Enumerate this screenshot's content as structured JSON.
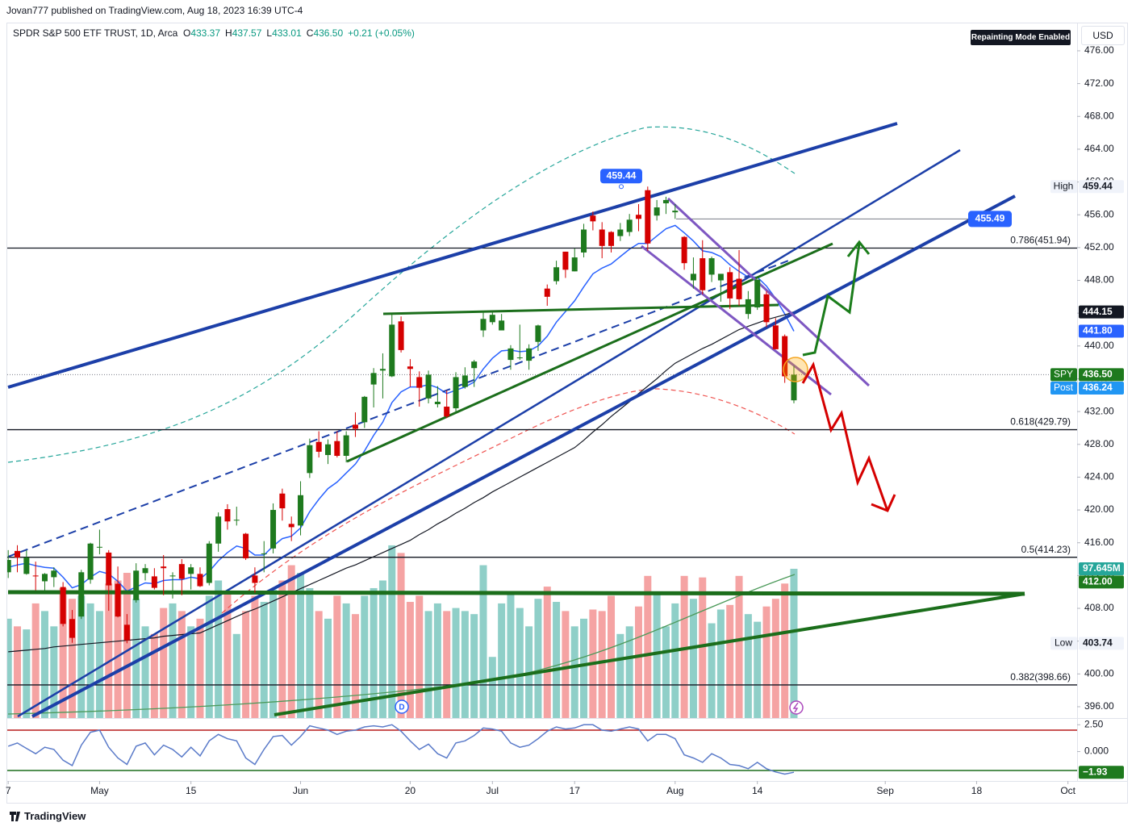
{
  "header": "Jovan777 published on TradingView.com, Aug 18, 2023 16:39 UTC-4",
  "footer": "TradingView",
  "chart_data": {
    "type": "candlestick",
    "title": "SPDR S&P 500 ETF TRUST, 1D, Arca",
    "legend_ohlc": [
      {
        "key": "O",
        "text": "433.37"
      },
      {
        "key": "H",
        "text": "437.57"
      },
      {
        "key": "L",
        "text": "433.01"
      },
      {
        "key": "C",
        "text": "436.50"
      },
      {
        "key": "",
        "text": "+0.21 (+0.05%)"
      }
    ],
    "mode_badge": "Repainting Mode Enabled",
    "currency": "USD",
    "up_color": "#1e7a1e",
    "down_color": "#d50000",
    "candles": [
      [
        412.4,
        415.1,
        411.7,
        413.9
      ],
      [
        415.0,
        415.7,
        412.4,
        414.2
      ],
      [
        412.2,
        415.1,
        412.1,
        414.2
      ],
      [
        412.0,
        413.7,
        410.2,
        411.9
      ],
      [
        411.3,
        412.3,
        410.0,
        412.2
      ],
      [
        411.8,
        413.0,
        410.6,
        412.6
      ],
      [
        410.6,
        411.2,
        405.8,
        406.1
      ],
      [
        406.7,
        407.8,
        403.8,
        404.4
      ],
      [
        407.0,
        412.7,
        406.7,
        412.4
      ],
      [
        411.5,
        416.0,
        411.0,
        415.9
      ],
      [
        415.5,
        417.6,
        414.6,
        415.5
      ],
      [
        414.8,
        415.1,
        407.7,
        410.8
      ],
      [
        411.0,
        413.1,
        406.9,
        407.0
      ],
      [
        406.0,
        407.3,
        403.74,
        404.1
      ],
      [
        409.0,
        413.5,
        408.7,
        412.6
      ],
      [
        412.3,
        413.4,
        411.4,
        412.9
      ],
      [
        411.9,
        412.9,
        410.3,
        410.5
      ],
      [
        413.1,
        414.5,
        409.6,
        412.9
      ],
      [
        411.9,
        412.4,
        409.2,
        412.0
      ],
      [
        413.4,
        414.0,
        409.6,
        411.6
      ],
      [
        412.2,
        413.4,
        410.3,
        413.0
      ],
      [
        412.2,
        413.0,
        410.6,
        410.7
      ],
      [
        411.1,
        416.2,
        410.8,
        415.9
      ],
      [
        415.9,
        419.7,
        414.9,
        419.2
      ],
      [
        420.1,
        420.7,
        417.6,
        418.6
      ],
      [
        418.8,
        420.4,
        418.1,
        418.8
      ],
      [
        417.1,
        417.2,
        413.9,
        414.1
      ],
      [
        412.0,
        413.0,
        409.9,
        411.1
      ],
      [
        414.7,
        416.2,
        412.4,
        414.7
      ],
      [
        415.3,
        420.8,
        414.7,
        420.0
      ],
      [
        422.0,
        422.6,
        418.7,
        420.2
      ],
      [
        418.3,
        419.2,
        416.2,
        417.9
      ],
      [
        418.1,
        423.5,
        416.9,
        421.8
      ],
      [
        424.5,
        428.7,
        423.9,
        427.9
      ],
      [
        428.3,
        429.6,
        426.4,
        427.1
      ],
      [
        426.7,
        428.6,
        425.6,
        428.0
      ],
      [
        428.4,
        429.6,
        426.4,
        426.6
      ],
      [
        426.6,
        429.6,
        425.8,
        429.1
      ],
      [
        430.4,
        431.9,
        428.9,
        429.9
      ],
      [
        430.7,
        433.9,
        430.0,
        433.8
      ],
      [
        435.3,
        437.3,
        432.5,
        436.7
      ],
      [
        437.0,
        439.1,
        433.6,
        437.2
      ],
      [
        436.3,
        443.9,
        436.2,
        442.6
      ],
      [
        443.0,
        443.6,
        439.2,
        439.5
      ],
      [
        437.5,
        438.4,
        435.0,
        437.2
      ],
      [
        436.2,
        436.9,
        432.6,
        434.9
      ],
      [
        433.6,
        437.0,
        433.0,
        436.5
      ],
      [
        432.9,
        435.1,
        432.5,
        433.2
      ],
      [
        432.6,
        434.6,
        431.2,
        431.4
      ],
      [
        432.4,
        436.8,
        431.9,
        436.2
      ],
      [
        435.0,
        437.4,
        434.8,
        436.4
      ],
      [
        437.3,
        438.3,
        435.0,
        438.1
      ],
      [
        441.9,
        444.3,
        441.1,
        443.3
      ],
      [
        442.9,
        444.1,
        442.6,
        443.8
      ],
      [
        441.9,
        443.9,
        441.9,
        443.1
      ],
      [
        438.3,
        440.1,
        437.1,
        439.7
      ],
      [
        438.6,
        442.6,
        438.3,
        438.6
      ],
      [
        438.2,
        440.2,
        437.1,
        439.7
      ],
      [
        440.5,
        442.6,
        439.4,
        442.5
      ],
      [
        447.0,
        447.5,
        444.9,
        446.0
      ],
      [
        447.9,
        450.4,
        447.5,
        449.6
      ],
      [
        451.5,
        451.5,
        448.3,
        449.3
      ],
      [
        449.1,
        451.9,
        449.1,
        450.8
      ],
      [
        451.4,
        454.9,
        450.8,
        454.2
      ],
      [
        455.9,
        456.4,
        454.1,
        455.2
      ],
      [
        454.2,
        455.1,
        450.7,
        452.2
      ],
      [
        453.9,
        454.0,
        451.4,
        452.2
      ],
      [
        453.4,
        455.0,
        452.8,
        454.2
      ],
      [
        453.9,
        456.1,
        453.4,
        455.4
      ],
      [
        456.0,
        457.3,
        454.0,
        455.5
      ],
      [
        459.0,
        459.44,
        451.6,
        452.5
      ],
      [
        455.9,
        457.8,
        455.3,
        456.9
      ],
      [
        457.4,
        458.2,
        456.1,
        457.8
      ],
      [
        456.3,
        457.3,
        455.5,
        456.5
      ],
      [
        453.3,
        453.4,
        449.3,
        450.1
      ],
      [
        448.0,
        450.8,
        447.0,
        448.8
      ],
      [
        450.7,
        452.9,
        446.3,
        446.8
      ],
      [
        448.7,
        450.9,
        447.8,
        450.7
      ],
      [
        448.0,
        448.4,
        445.4,
        448.8
      ],
      [
        449.0,
        449.6,
        444.5,
        445.8
      ],
      [
        448.2,
        451.7,
        444.9,
        445.7
      ],
      [
        443.9,
        446.7,
        443.3,
        445.7
      ],
      [
        444.7,
        448.1,
        444.4,
        448.1
      ],
      [
        446.3,
        446.7,
        442.3,
        442.9
      ],
      [
        442.5,
        443.4,
        439.6,
        439.6
      ],
      [
        441.2,
        441.4,
        435.5,
        436.3
      ],
      [
        433.37,
        437.57,
        433.01,
        436.5
      ]
    ],
    "lines": [
      {
        "color": "#2962ff",
        "width": 1.5,
        "values": [
          413,
          413.3,
          413.5,
          413.2,
          413,
          412.9,
          411.8,
          410.5,
          410.9,
          411.8,
          412.5,
          412.2,
          411.3,
          410.1,
          410.6,
          411.1,
          411,
          411.4,
          411.5,
          411.5,
          411.8,
          411.6,
          412.5,
          413.8,
          414.8,
          415.6,
          415.3,
          414.5,
          414.5,
          415.6,
          416.5,
          416.8,
          417.8,
          419.8,
          421.3,
          422.6,
          423.4,
          424.5,
          425.6,
          427.2,
          429.1,
          430.7,
          433.1,
          434.4,
          435,
          435,
          435.3,
          434.9,
          434.2,
          434.6,
          435,
          435.6,
          437.2,
          438.5,
          439.4,
          439.5,
          439.3,
          439.4,
          440,
          441.2,
          442.9,
          444.2,
          445.5,
          447.2,
          448.8,
          449.5,
          450,
          450.9,
          451.8,
          452.5,
          452.5,
          453.4,
          454.3,
          454.7,
          453.8,
          452.8,
          451.6,
          451.4,
          450.9,
          449.9,
          449.1,
          448.4,
          448.4,
          447.3,
          445.8,
          443.9,
          441.8
        ]
      },
      {
        "color": "#131722",
        "width": 1.2,
        "values": [
          402.7,
          402.8,
          402.9,
          403.0,
          403.1,
          403.3,
          403.4,
          403.5,
          403.6,
          403.7,
          403.8,
          403.9,
          404.0,
          404.1,
          404.2,
          404.3,
          404.4,
          404.6,
          404.7,
          404.8,
          404.9,
          405.0,
          405.5,
          406.0,
          406.5,
          407.0,
          407.5,
          407.9,
          408.4,
          408.9,
          409.4,
          409.9,
          410.4,
          410.9,
          411.4,
          411.9,
          412.4,
          412.9,
          413.3,
          413.8,
          414.3,
          414.8,
          415.3,
          415.8,
          416.3,
          417.0,
          417.6,
          418.3,
          418.9,
          419.6,
          420.2,
          420.9,
          421.5,
          422.2,
          422.8,
          423.4,
          424.0,
          424.6,
          425.2,
          425.8,
          426.4,
          427.0,
          427.6,
          428.5,
          429.5,
          430.4,
          431.4,
          432.3,
          433.2,
          434.2,
          435.1,
          436.0,
          437.0,
          437.9,
          438.5,
          439.1,
          439.7,
          440.2,
          440.8,
          441.4,
          442.0,
          442.4,
          442.8,
          443.2,
          443.5,
          443.8,
          444.15
        ]
      }
    ],
    "volume": {
      "up_color": "#8fcfc8",
      "down_color": "#f5a3a3",
      "ylim": [
        0,
        455
      ],
      "values": [
        65,
        60,
        58,
        75,
        70,
        60,
        85,
        78,
        80,
        75,
        70,
        88,
        90,
        95,
        78,
        60,
        55,
        72,
        75,
        70,
        60,
        65,
        80,
        90,
        82,
        55,
        70,
        80,
        76,
        84,
        90,
        100,
        95,
        85,
        70,
        65,
        80,
        75,
        68,
        80,
        85,
        90,
        113,
        108,
        76,
        80,
        70,
        75,
        70,
        72,
        70,
        68,
        100,
        40,
        75,
        82,
        72,
        60,
        78,
        86,
        76,
        70,
        60,
        65,
        71,
        70,
        80,
        55,
        60,
        73,
        93,
        82,
        60,
        75,
        93,
        78,
        92,
        62,
        71,
        74,
        93,
        68,
        63,
        73,
        78,
        88,
        97.645
      ]
    },
    "oscillator": {
      "color": "#5b7bc9",
      "ylim": [
        -2.74,
        2.9
      ],
      "yticks": [
        {
          "value": 2.5,
          "label": "2.50"
        },
        {
          "value": 0,
          "label": "0.000"
        }
      ],
      "values": [
        0.5,
        0.8,
        0.3,
        -0.2,
        0.4,
        0.2,
        -0.8,
        -1.3,
        0.6,
        1.8,
        2.0,
        0.4,
        -0.6,
        -1.2,
        0.5,
        0.8,
        -0.3,
        0.6,
        0.2,
        -0.5,
        0.4,
        -0.4,
        1.0,
        1.6,
        1.2,
        1.0,
        -0.6,
        -1.2,
        0.2,
        1.4,
        1.5,
        0.6,
        1.4,
        2.4,
        2.2,
        2.0,
        1.6,
        1.9,
        2.0,
        2.3,
        2.4,
        2.3,
        2.5,
        1.9,
        1.0,
        0.2,
        0.7,
        -0.2,
        -0.6,
        0.8,
        1.0,
        1.5,
        2.2,
        2.1,
        1.9,
        0.8,
        0.4,
        0.6,
        1.2,
        1.9,
        2.3,
        2.1,
        2.2,
        2.5,
        2.5,
        2.0,
        1.9,
        2.1,
        2.3,
        2.1,
        1.0,
        1.6,
        1.6,
        1.2,
        -0.3,
        -0.6,
        -1.0,
        -0.2,
        -0.6,
        -1.2,
        -1.3,
        -1.6,
        -1.0,
        -1.6,
        -1.9,
        -2.1,
        -1.93
      ],
      "badge": {
        "label": "−1.93",
        "value": -1.93,
        "bg": "#1e7a1e",
        "fg": "#ffffff"
      }
    },
    "xlim": [
      -0.9,
      117
    ],
    "xticks": [
      {
        "value": 0,
        "label": "7"
      },
      {
        "value": 10,
        "label": "May"
      },
      {
        "value": 20,
        "label": "15"
      },
      {
        "value": 32,
        "label": "Jun"
      },
      {
        "value": 44,
        "label": "20"
      },
      {
        "value": 53,
        "label": "Jul"
      },
      {
        "value": 62,
        "label": "17"
      },
      {
        "value": 73,
        "label": "Aug"
      },
      {
        "value": 82,
        "label": "14"
      },
      {
        "value": 96,
        "label": "Sep"
      },
      {
        "value": 106,
        "label": "18"
      },
      {
        "value": 116,
        "label": "Oct"
      }
    ],
    "ylim": [
      394.62,
      479.44
    ],
    "yticks": [
      {
        "value": 476,
        "label": "476.00"
      },
      {
        "value": 472,
        "label": "472.00"
      },
      {
        "value": 468,
        "label": "468.00"
      },
      {
        "value": 464,
        "label": "464.00"
      },
      {
        "value": 460,
        "label": "460.00"
      },
      {
        "value": 456,
        "label": "456.00"
      },
      {
        "value": 452,
        "label": "452.00"
      },
      {
        "value": 448,
        "label": "448.00"
      },
      {
        "value": 444,
        "label": "444.00"
      },
      {
        "value": 440,
        "label": "440.00"
      },
      {
        "value": 436,
        "label": "436.00"
      },
      {
        "value": 432,
        "label": "432.00"
      },
      {
        "value": 428,
        "label": "428.00"
      },
      {
        "value": 424,
        "label": "424.00"
      },
      {
        "value": 420,
        "label": "420.00"
      },
      {
        "value": 416,
        "label": "416.00"
      },
      {
        "value": 412,
        "label": "412.00"
      },
      {
        "value": 408,
        "label": "408.00"
      },
      {
        "value": 404,
        "label": "404.00"
      },
      {
        "value": 400,
        "label": "400.00"
      },
      {
        "value": 396,
        "label": "396.00"
      }
    ],
    "levels": [
      {
        "label": "0.786(451.94)",
        "value": 451.94
      },
      {
        "label": "0.618(429.79)",
        "value": 429.79
      },
      {
        "label": "0.5(414.23)",
        "value": 414.23
      },
      {
        "label": "0.382(398.66)",
        "value": 398.66
      }
    ],
    "badges": [
      {
        "tag": "High",
        "label": "459.44",
        "value": 459.44,
        "bg": "#f0f3fa",
        "fg": "#131722",
        "tag_bg": "#f0f3fa"
      },
      {
        "label": "444.15",
        "value": 444.15,
        "bg": "#131722",
        "fg": "#ffffff"
      },
      {
        "label": "441.80",
        "value": 441.8,
        "bg": "#2962ff",
        "fg": "#ffffff"
      },
      {
        "tag": "SPY",
        "label": "436.50",
        "value": 436.5,
        "bg": "#1e7a1e",
        "fg": "#ffffff",
        "tag_bg": "#1e7a1e"
      },
      {
        "tag": "Post",
        "label": "436.24",
        "value": 436.24,
        "bg": "#2196f3",
        "fg": "#ffffff",
        "tag_bg": "#2196f3"
      },
      {
        "label": "97.645M",
        "value": 97.645,
        "axis": "volume",
        "bg": "#26a69a",
        "fg": "#ffffff"
      },
      {
        "label": "412.00",
        "value": 412,
        "bg": "#1e7a1e",
        "fg": "#ffffff"
      },
      {
        "tag": "Low",
        "label": "403.74",
        "value": 403.74,
        "bg": "#f0f3fa",
        "fg": "#131722",
        "tag_bg": "#f0f3fa"
      }
    ],
    "high_callout": {
      "label": "459.44",
      "value": 459.44
    },
    "level_callout": {
      "label": "455.49",
      "value": 455.49
    },
    "dividend_marker": "D"
  }
}
